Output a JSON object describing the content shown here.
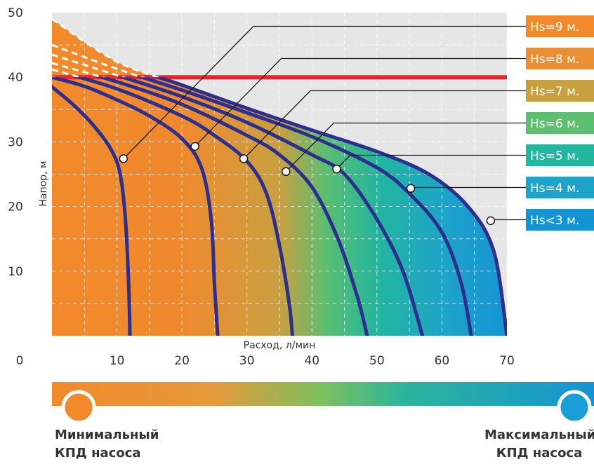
{
  "chart_data": {
    "type": "line",
    "title": "",
    "xlabel": "Расход, л/мин",
    "ylabel": "Напор, м",
    "xlim": [
      0,
      70
    ],
    "ylim": [
      0,
      50
    ],
    "x_ticks": [
      10,
      20,
      30,
      40,
      50,
      60,
      70
    ],
    "y_ticks": [
      10,
      20,
      30,
      40,
      50
    ],
    "origin_label": "0",
    "grid": true,
    "limit_line": {
      "y": 40,
      "color": "#e8262c"
    },
    "series": [
      {
        "name": "Hs=9 м.",
        "color": "#f28a2b",
        "callout_point": [
          11,
          27.4
        ],
        "x": [
          0,
          3,
          6,
          9,
          10.5,
          11.3,
          11.8,
          12
        ],
        "y": [
          38.5,
          36,
          33,
          29,
          25,
          18,
          8,
          0
        ]
      },
      {
        "name": "Hs=8 м.",
        "color": "#eb8f35",
        "callout_point": [
          22,
          29.3
        ],
        "x": [
          0,
          5,
          10,
          15,
          20,
          23,
          24.5,
          25,
          25.5
        ],
        "y": [
          40,
          38.6,
          36.5,
          34,
          30.5,
          26,
          18,
          8,
          0
        ]
      },
      {
        "name": "Hs=7 м.",
        "color": "#c9a040",
        "callout_point": [
          29.5,
          27.4
        ],
        "x": [
          0,
          10,
          20,
          25,
          30,
          33,
          35,
          36.5,
          37
        ],
        "y": [
          41.2,
          38.2,
          34,
          31,
          27,
          22,
          14,
          5,
          0
        ]
      },
      {
        "name": "Hs=6 м.",
        "color": "#5cbe70",
        "callout_point": [
          36,
          25.4
        ],
        "x": [
          0,
          10,
          20,
          30,
          35,
          40,
          44,
          47,
          48.5
        ],
        "y": [
          42.2,
          39.3,
          35.8,
          31,
          28,
          23,
          15,
          6,
          0
        ]
      },
      {
        "name": "Hs=5 м.",
        "color": "#22b5a0",
        "callout_point": [
          43.8,
          25.8
        ],
        "x": [
          0,
          10,
          20,
          30,
          40,
          45,
          50,
          54,
          57
        ],
        "y": [
          43.5,
          40.3,
          37,
          33,
          28,
          25,
          18,
          10,
          0
        ]
      },
      {
        "name": "Hs=4 м.",
        "color": "#1ea4c9",
        "callout_point": [
          55.2,
          22.8
        ],
        "x": [
          0,
          10,
          20,
          30,
          40,
          50,
          55,
          60,
          63,
          64.5
        ],
        "y": [
          45,
          41.3,
          38,
          34.5,
          30.8,
          26,
          22,
          16,
          8,
          0
        ]
      },
      {
        "name": "Hs<3 м.",
        "color": "#1594d3",
        "callout_point": [
          67.5,
          17.8
        ],
        "x": [
          0,
          10,
          20,
          30,
          40,
          50,
          58,
          64,
          68,
          70
        ],
        "y": [
          49,
          42.4,
          38.8,
          35.2,
          31.8,
          28.5,
          25,
          20,
          13,
          0
        ]
      }
    ]
  },
  "legend_bar": {
    "min_label": "Минимальный\nКПД насоса",
    "max_label": "Максимальный\nКПД насоса",
    "min_color": "#f28a2b",
    "max_color": "#1a9ed8"
  }
}
